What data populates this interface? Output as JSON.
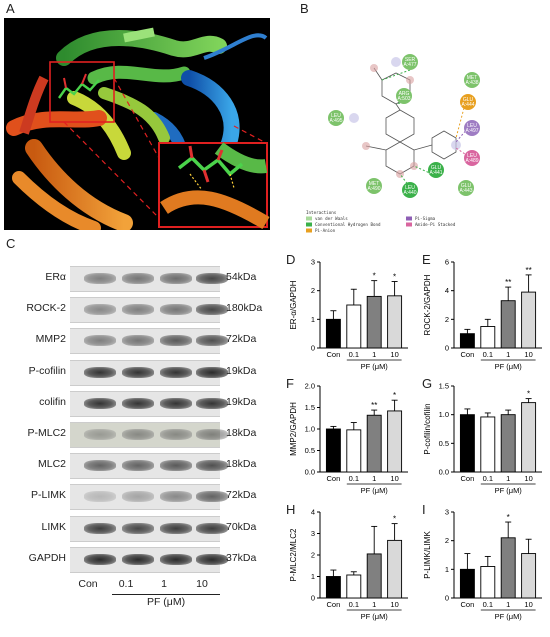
{
  "panels": {
    "a": "A",
    "b": "B",
    "c": "C",
    "d": "D",
    "e": "E",
    "f": "F",
    "g": "G",
    "h": "H",
    "i": "I"
  },
  "panel_b": {
    "residues": [
      {
        "name": "SER A:477",
        "color": "#7dc36b"
      },
      {
        "name": "ARG A:503",
        "color": "#7dc36b"
      },
      {
        "name": "MET A:438",
        "color": "#7dc36b"
      },
      {
        "name": "GLU A:444",
        "color": "#e8a020"
      },
      {
        "name": "LEU A:495",
        "color": "#7dc36b"
      },
      {
        "name": "LEU A:497",
        "color": "#9e7cc3"
      },
      {
        "name": "LEU A:489",
        "color": "#d9659f"
      },
      {
        "name": "MET A:490",
        "color": "#7dc36b"
      },
      {
        "name": "GLU A:441",
        "color": "#3bb14a"
      },
      {
        "name": "LEU A:440",
        "color": "#3bb14a"
      },
      {
        "name": "GLU A:443",
        "color": "#7dc36b"
      }
    ],
    "legend_title": "Interactions",
    "legend": [
      {
        "label": "van der Waals",
        "color": "#a9d99a"
      },
      {
        "label": "Pi-Sigma",
        "color": "#8e5fb5"
      },
      {
        "label": "Conventional Hydrogen Bond",
        "color": "#3bb14a"
      },
      {
        "label": "Amide-Pi Stacked",
        "color": "#d9659f"
      },
      {
        "label": "Pi-Anion",
        "color": "#e8a020"
      }
    ]
  },
  "blots": {
    "rows": [
      {
        "name": "ERα",
        "size": "54kDa"
      },
      {
        "name": "ROCK-2",
        "size": "180kDa"
      },
      {
        "name": "MMP2",
        "size": "72kDa"
      },
      {
        "name": "P-cofilin",
        "size": "19kDa"
      },
      {
        "name": "colifin",
        "size": "19kDa"
      },
      {
        "name": "P-MLC2",
        "size": "18kDa"
      },
      {
        "name": "MLC2",
        "size": "18kDa"
      },
      {
        "name": "P-LIMK",
        "size": "72kDa"
      },
      {
        "name": "LIMK",
        "size": "70kDa"
      },
      {
        "name": "GAPDH",
        "size": "37kDa"
      }
    ],
    "lanes": [
      "Con",
      "0.1",
      "1",
      "10"
    ],
    "xlabel": "PF (μM)"
  },
  "chart_data": [
    {
      "id": "D",
      "type": "bar",
      "ylabel": "ER-α/GAPDH",
      "xlabel": "PF (μM)",
      "categories": [
        "Con",
        "0.1",
        "1",
        "10"
      ],
      "values": [
        1.0,
        1.5,
        1.8,
        1.82
      ],
      "errors": [
        0.3,
        0.55,
        0.55,
        0.5
      ],
      "sig": [
        "",
        "",
        "*",
        "*"
      ],
      "ylim": [
        0,
        3
      ],
      "yticks": [
        0,
        1,
        2,
        3
      ],
      "colors": [
        "#000000",
        "#ffffff",
        "#808080",
        "#d9d9d9"
      ]
    },
    {
      "id": "E",
      "type": "bar",
      "ylabel": "ROCK-2/GAPDH",
      "xlabel": "PF (μM)",
      "categories": [
        "Con",
        "0.1",
        "1",
        "10"
      ],
      "values": [
        1.0,
        1.5,
        3.3,
        3.9
      ],
      "errors": [
        0.3,
        0.5,
        0.95,
        1.2
      ],
      "sig": [
        "",
        "",
        "**",
        "**"
      ],
      "ylim": [
        0,
        6
      ],
      "yticks": [
        0,
        2,
        4,
        6
      ],
      "colors": [
        "#000000",
        "#ffffff",
        "#808080",
        "#d9d9d9"
      ]
    },
    {
      "id": "F",
      "type": "bar",
      "ylabel": "MMP2/GAPDH",
      "xlabel": "PF (μM)",
      "categories": [
        "Con",
        "0.1",
        "1",
        "10"
      ],
      "values": [
        1.0,
        0.98,
        1.32,
        1.42
      ],
      "errors": [
        0.06,
        0.17,
        0.12,
        0.25
      ],
      "sig": [
        "",
        "",
        "**",
        "*"
      ],
      "ylim": [
        0,
        2
      ],
      "yticks": [
        0.0,
        0.5,
        1.0,
        1.5,
        2.0
      ],
      "colors": [
        "#000000",
        "#ffffff",
        "#808080",
        "#d9d9d9"
      ]
    },
    {
      "id": "G",
      "type": "bar",
      "ylabel": "P-cofilin/cofilin",
      "xlabel": "PF (μM)",
      "categories": [
        "Con",
        "0.1",
        "1",
        "10"
      ],
      "values": [
        1.0,
        0.96,
        1.0,
        1.21
      ],
      "errors": [
        0.1,
        0.07,
        0.08,
        0.07
      ],
      "sig": [
        "",
        "",
        "",
        "*"
      ],
      "ylim": [
        0,
        1.5
      ],
      "yticks": [
        0.0,
        0.5,
        1.0,
        1.5
      ],
      "colors": [
        "#000000",
        "#ffffff",
        "#808080",
        "#d9d9d9"
      ]
    },
    {
      "id": "H",
      "type": "bar",
      "ylabel": "P-MLC2/MLC2",
      "xlabel": "PF (μM)",
      "categories": [
        "Con",
        "0.1",
        "1",
        "10"
      ],
      "values": [
        1.0,
        1.07,
        2.05,
        2.68
      ],
      "errors": [
        0.3,
        0.15,
        1.28,
        0.78
      ],
      "sig": [
        "",
        "",
        "",
        "*"
      ],
      "ylim": [
        0,
        4
      ],
      "yticks": [
        0,
        1,
        2,
        3,
        4
      ],
      "colors": [
        "#000000",
        "#ffffff",
        "#808080",
        "#d9d9d9"
      ]
    },
    {
      "id": "I",
      "type": "bar",
      "ylabel": "P-LIMK/LIMK",
      "xlabel": "PF (μM)",
      "categories": [
        "Con",
        "0.1",
        "1",
        "10"
      ],
      "values": [
        1.0,
        1.1,
        2.1,
        1.55
      ],
      "errors": [
        0.55,
        0.35,
        0.55,
        0.5
      ],
      "sig": [
        "",
        "",
        "*",
        ""
      ],
      "ylim": [
        0,
        3
      ],
      "yticks": [
        0,
        1,
        2,
        3
      ],
      "colors": [
        "#000000",
        "#ffffff",
        "#808080",
        "#d9d9d9"
      ]
    }
  ]
}
